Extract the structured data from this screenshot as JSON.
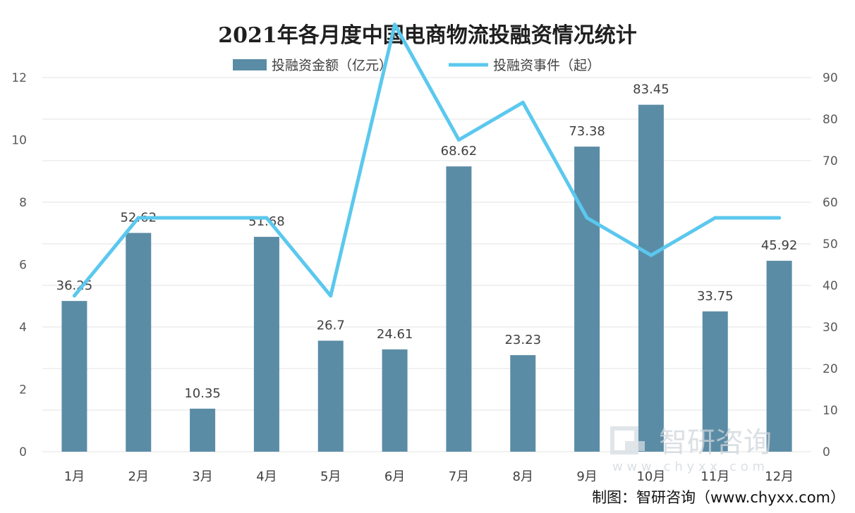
{
  "chart_data": {
    "type": "bar",
    "title": "2021年各月度中国电商物流投融资情况统计",
    "categories": [
      "1月",
      "2月",
      "3月",
      "4月",
      "5月",
      "6月",
      "7月",
      "8月",
      "9月",
      "10月",
      "11月",
      "12月"
    ],
    "series": [
      {
        "name": "投融资金额（亿元）",
        "type": "bar",
        "axis": "right",
        "values": [
          36.25,
          52.62,
          10.35,
          51.68,
          26.7,
          24.61,
          68.62,
          23.23,
          73.38,
          83.45,
          33.75,
          45.92
        ],
        "labels": [
          "36.25",
          "52.62",
          "10.35",
          "51.68",
          "26.7",
          "24.61",
          "68.62",
          "23.23",
          "73.38",
          "83.45",
          "33.75",
          "45.92"
        ],
        "color": "#5b8ca6"
      },
      {
        "name": "投融资事件（起）",
        "type": "line",
        "axis": "left",
        "values": [
          5,
          7.5,
          7.5,
          7.5,
          5,
          13.7,
          10,
          11.2,
          7.5,
          6.3,
          7.5,
          7.5
        ],
        "color": "#5bc8ee"
      }
    ],
    "yaxis_left": {
      "ticks": [
        "0",
        "2",
        "4",
        "6",
        "8",
        "10",
        "12"
      ],
      "range": [
        0,
        12
      ]
    },
    "yaxis_right": {
      "ticks": [
        "0",
        "10",
        "20",
        "30",
        "40",
        "50",
        "60",
        "70",
        "80",
        "90"
      ],
      "range": [
        0,
        90
      ]
    },
    "grid": true,
    "legend": "top-center"
  },
  "source": "制图：智研咨询（www.chyxx.com）",
  "watermark": {
    "text": "智研咨询",
    "url": "w w w . c h y x x . c o m"
  }
}
